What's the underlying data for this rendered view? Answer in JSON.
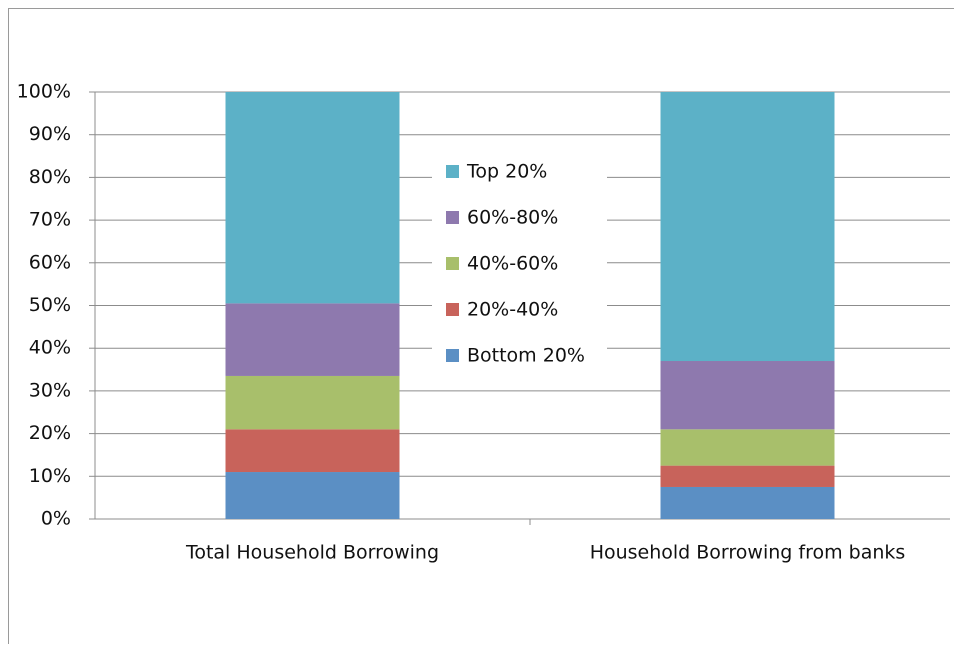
{
  "chart_data": {
    "type": "stacked_bar",
    "categories": [
      "Total Household Borrowing",
      "Household Borrowing from banks"
    ],
    "series": [
      {
        "name": "Bottom 20%",
        "color": "#5b8fc4",
        "values": [
          11,
          7.5
        ]
      },
      {
        "name": "20%-40%",
        "color": "#c8635b",
        "values": [
          10,
          5
        ]
      },
      {
        "name": "40%-60%",
        "color": "#a8bf6b",
        "values": [
          12.5,
          8.5
        ]
      },
      {
        "name": "60%-80%",
        "color": "#8e79ae",
        "values": [
          17,
          16
        ]
      },
      {
        "name": "Top 20%",
        "color": "#5cb1c7",
        "values": [
          49.5,
          63
        ]
      }
    ],
    "ylim": [
      0,
      100
    ],
    "yticks": [
      {
        "value": 0,
        "label": "0%"
      },
      {
        "value": 10,
        "label": "10%"
      },
      {
        "value": 20,
        "label": "20%"
      },
      {
        "value": 30,
        "label": "30%"
      },
      {
        "value": 40,
        "label": "40%"
      },
      {
        "value": 50,
        "label": "50%"
      },
      {
        "value": 60,
        "label": "60%"
      },
      {
        "value": 70,
        "label": "70%"
      },
      {
        "value": 80,
        "label": "80%"
      },
      {
        "value": 90,
        "label": "90%"
      },
      {
        "value": 100,
        "label": "100%"
      }
    ],
    "grid": true
  }
}
